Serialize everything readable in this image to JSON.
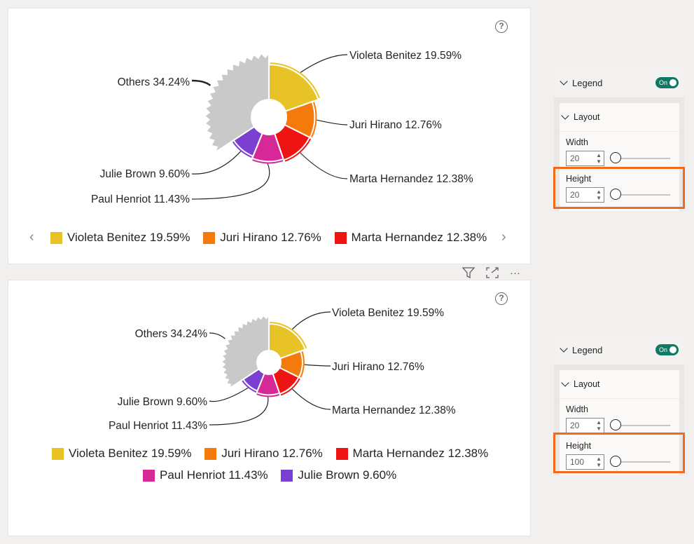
{
  "visual_top": {
    "slices": [
      {
        "label": "Violeta Benitez 19.59%",
        "color": "#e8c328",
        "value": 19.59
      },
      {
        "label": "Juri Hirano 12.76%",
        "color": "#f47a0c",
        "value": 12.76
      },
      {
        "label": "Marta Hernandez 12.38%",
        "color": "#ef1414",
        "value": 12.38
      },
      {
        "label": "Paul Henriot 11.43%",
        "color": "#d72898",
        "value": 11.43
      },
      {
        "label": "Julie Brown 9.60%",
        "color": "#7b3fd2",
        "value": 9.6
      },
      {
        "label": "Others 34.24%",
        "color": "#c9c9c9",
        "value": 34.24
      }
    ],
    "legend": [
      "Violeta Benitez 19.59%",
      "Juri Hirano 12.76%",
      "Marta Hernandez 12.38%"
    ],
    "legend_prev": "‹",
    "legend_next": "›"
  },
  "visual_bottom": {
    "legend_row1": [
      "Violeta Benitez 19.59%",
      "Juri Hirano 12.76%",
      "Marta Hernandez 12.38%"
    ],
    "legend_row2": [
      "Paul Henriot 11.43%",
      "Julie Brown 9.60%"
    ]
  },
  "help_symbol": "?",
  "toolbar": {
    "filter_icon": "filter-icon",
    "focus_icon": "focus-mode-icon",
    "more": "···"
  },
  "panel_top": {
    "title": "Legend",
    "toggle": "On",
    "section": "Layout",
    "width_label": "Width",
    "width_value": "20",
    "height_label": "Height",
    "height_value": "20"
  },
  "panel_bottom": {
    "title": "Legend",
    "toggle": "On",
    "section": "Layout",
    "width_label": "Width",
    "width_value": "20",
    "height_label": "Height",
    "height_value": "100"
  },
  "colors": {
    "violeta": "#e8c328",
    "juri": "#f47a0c",
    "marta": "#ef1414",
    "paul": "#d72898",
    "julie": "#7b3fd2",
    "others": "#c9c9c9",
    "highlight": "#f26b1d"
  }
}
